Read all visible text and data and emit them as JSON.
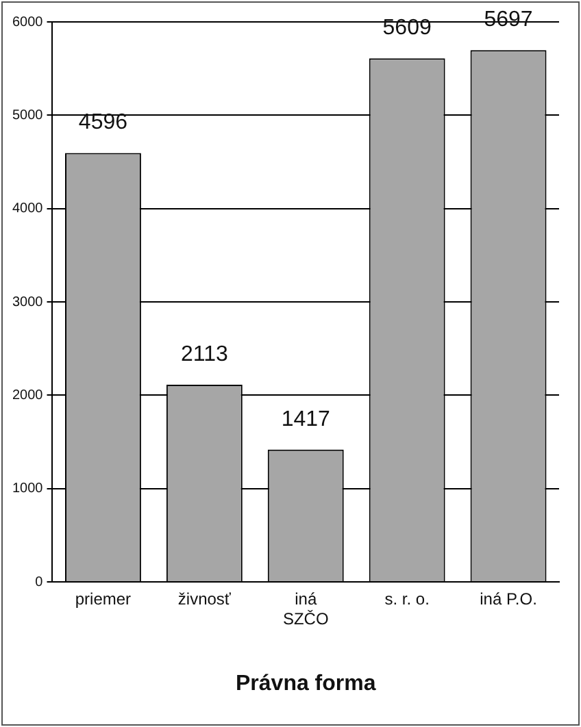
{
  "chart_data": {
    "type": "bar",
    "xlabel": "Právna forma",
    "categories": [
      "priemer",
      "živnosť",
      "iná SZČO",
      "s. r. o.",
      "iná P.O."
    ],
    "values": [
      4596,
      2113,
      1417,
      5609,
      5697
    ],
    "color": "#a6a6a6",
    "ylim": [
      0,
      6000
    ],
    "yticks": [
      0,
      1000,
      2000,
      3000,
      4000,
      5000,
      6000
    ],
    "grid": "y",
    "data_labels": true
  }
}
